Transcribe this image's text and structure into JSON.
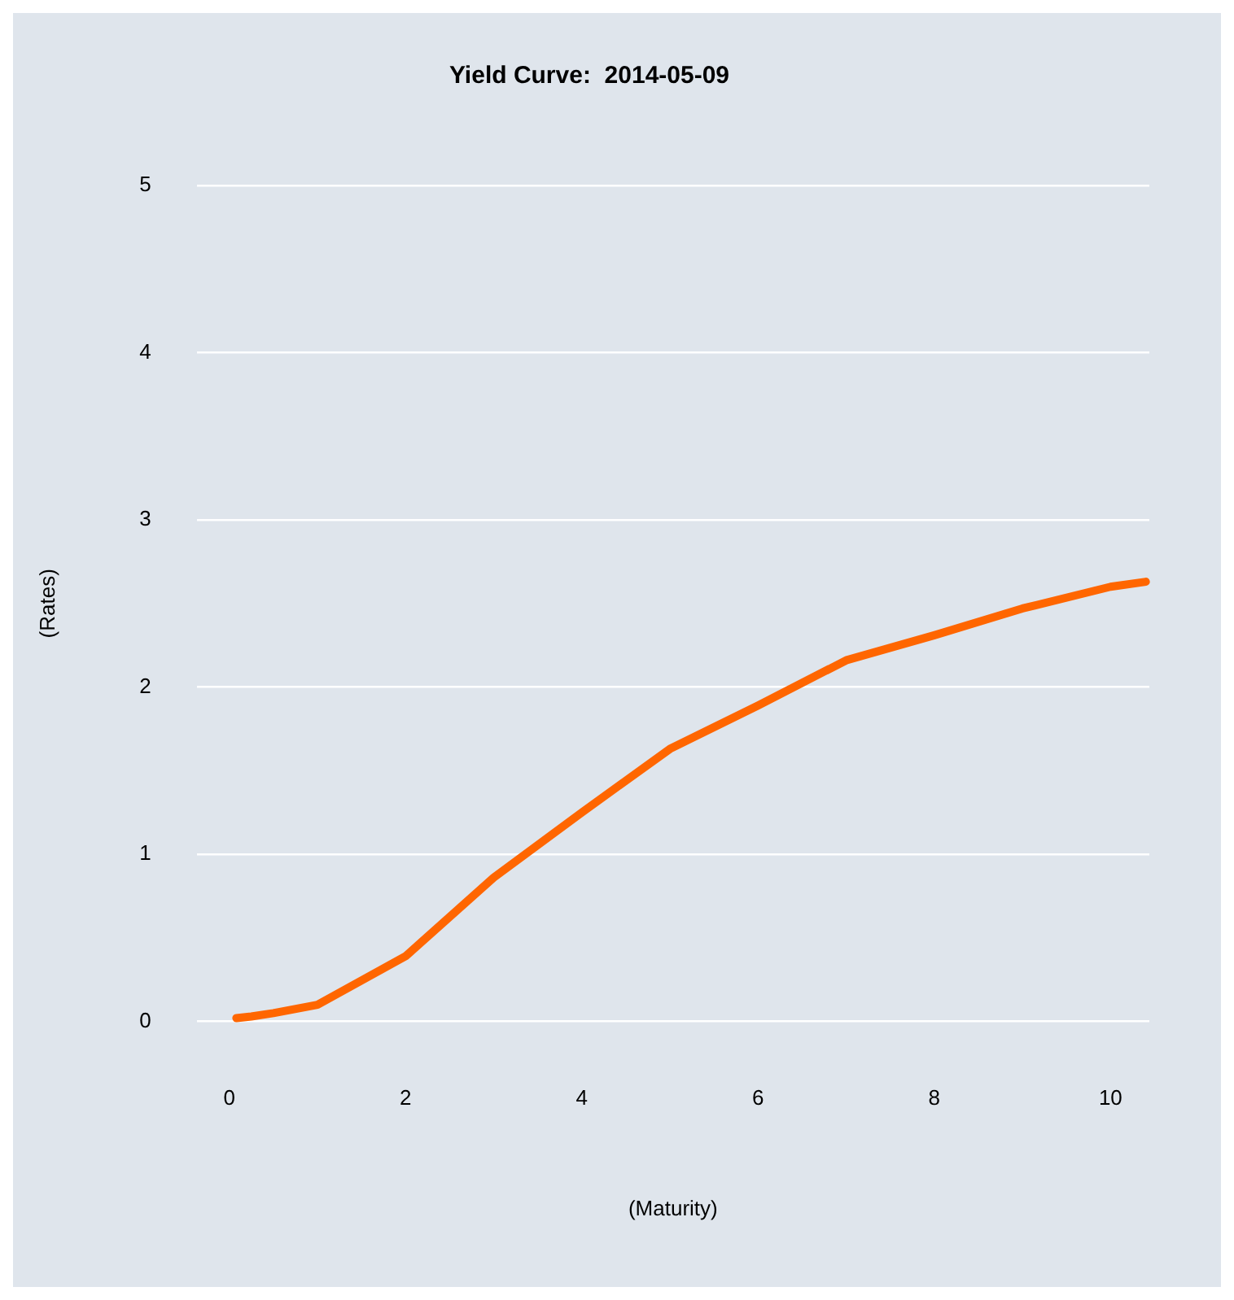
{
  "chart_data": {
    "type": "line",
    "title": "Yield Curve:  2014-05-09",
    "xlabel": "(Maturity)",
    "ylabel": "(Rates)",
    "x": [
      0.08,
      0.25,
      0.5,
      1,
      2,
      3,
      4,
      5,
      6,
      7,
      8,
      9,
      10,
      10.4
    ],
    "series": [
      {
        "color": "#ff6600",
        "values": [
          0.02,
          0.03,
          0.05,
          0.1,
          0.39,
          0.86,
          1.25,
          1.63,
          1.89,
          2.16,
          2.31,
          2.47,
          2.6,
          2.63
        ]
      }
    ],
    "xlim": [
      -0.37,
      10.44
    ],
    "xticks": [
      0,
      2,
      4,
      6,
      8,
      10
    ],
    "ylim": [
      0,
      5
    ],
    "yticks": [
      0,
      1,
      2,
      3,
      4,
      5
    ],
    "grid": "y",
    "marker": "none",
    "line_style": "solid",
    "legend": false
  }
}
